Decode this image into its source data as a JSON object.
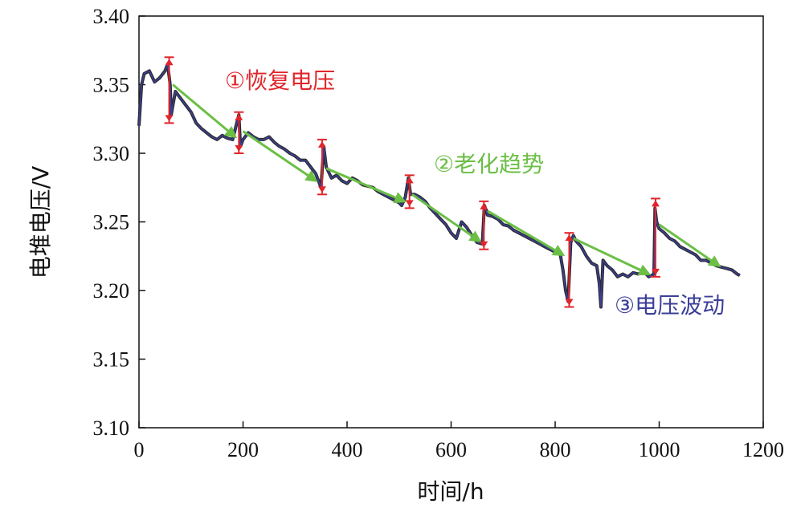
{
  "chart_data": {
    "type": "line",
    "title": "",
    "xlabel": "时间/h",
    "ylabel": "电堆电压/V",
    "xlim": [
      0,
      1200
    ],
    "ylim": [
      3.1,
      3.4
    ],
    "x_ticks": [
      "0",
      "200",
      "400",
      "600",
      "800",
      "1000",
      "1200"
    ],
    "y_ticks": [
      "3.10",
      "3.15",
      "3.20",
      "3.25",
      "3.30",
      "3.35",
      "3.40"
    ],
    "grid": false,
    "legend": "none",
    "colors": {
      "raw": "#2b2b2b",
      "fluctuation": "#3c3f9a",
      "recovery": "#e0262b",
      "trend": "#6bbf45"
    },
    "series": [
      {
        "values_x": [
          0,
          5,
          10,
          20,
          30,
          40,
          50,
          55,
          60,
          62,
          70,
          80,
          90,
          100,
          110,
          120,
          130,
          140,
          150,
          160,
          170,
          180,
          188,
          192,
          195,
          200,
          210,
          220,
          230,
          240,
          250,
          260,
          270,
          280,
          290,
          300,
          310,
          320,
          330,
          340,
          345,
          350,
          355,
          360,
          370,
          380,
          390,
          400,
          410,
          420,
          430,
          440,
          450,
          460,
          470,
          480,
          490,
          500,
          505,
          512,
          518,
          522,
          530,
          540,
          550,
          560,
          570,
          580,
          590,
          600,
          610,
          620,
          630,
          640,
          650,
          660,
          664,
          668,
          670,
          680,
          690,
          700,
          710,
          720,
          730,
          740,
          750,
          760,
          770,
          780,
          790,
          800,
          810,
          815,
          820,
          825,
          830,
          835,
          840,
          850,
          860,
          870,
          880,
          885,
          888,
          892,
          900,
          910,
          920,
          930,
          940,
          950,
          960,
          970,
          980,
          990,
          992,
          995,
          1000,
          1010,
          1020,
          1030,
          1040,
          1050,
          1060,
          1070,
          1080,
          1090,
          1100,
          1110,
          1120,
          1130,
          1140,
          1150,
          1155
        ],
        "values_y": [
          3.32,
          3.35,
          3.358,
          3.36,
          3.352,
          3.355,
          3.36,
          3.365,
          3.35,
          3.328,
          3.345,
          3.34,
          3.335,
          3.33,
          3.322,
          3.318,
          3.315,
          3.312,
          3.31,
          3.313,
          3.311,
          3.31,
          3.322,
          3.328,
          3.305,
          3.31,
          3.315,
          3.312,
          3.31,
          3.31,
          3.312,
          3.308,
          3.305,
          3.303,
          3.3,
          3.298,
          3.295,
          3.295,
          3.29,
          3.285,
          3.28,
          3.275,
          3.305,
          3.29,
          3.282,
          3.284,
          3.28,
          3.278,
          3.282,
          3.28,
          3.277,
          3.276,
          3.275,
          3.272,
          3.27,
          3.268,
          3.266,
          3.264,
          3.262,
          3.268,
          3.282,
          3.27,
          3.27,
          3.268,
          3.265,
          3.26,
          3.256,
          3.252,
          3.248,
          3.242,
          3.238,
          3.25,
          3.246,
          3.24,
          3.235,
          3.234,
          3.262,
          3.258,
          3.255,
          3.254,
          3.252,
          3.248,
          3.247,
          3.244,
          3.242,
          3.24,
          3.238,
          3.236,
          3.234,
          3.232,
          3.23,
          3.228,
          3.226,
          3.215,
          3.2,
          3.192,
          3.235,
          3.24,
          3.236,
          3.232,
          3.225,
          3.22,
          3.218,
          3.205,
          3.188,
          3.222,
          3.218,
          3.215,
          3.21,
          3.212,
          3.21,
          3.213,
          3.212,
          3.214,
          3.21,
          3.212,
          3.26,
          3.25,
          3.245,
          3.242,
          3.238,
          3.236,
          3.232,
          3.23,
          3.228,
          3.226,
          3.222,
          3.222,
          3.22,
          3.218,
          3.217,
          3.216,
          3.215,
          3.212,
          3.211
        ]
      }
    ],
    "recovery_markers": [
      {
        "x": 58,
        "y_low": 3.322,
        "y_high": 3.37
      },
      {
        "x": 192,
        "y_low": 3.3,
        "y_high": 3.33
      },
      {
        "x": 352,
        "y_low": 3.27,
        "y_high": 3.31
      },
      {
        "x": 520,
        "y_low": 3.26,
        "y_high": 3.284
      },
      {
        "x": 663,
        "y_low": 3.23,
        "y_high": 3.265
      },
      {
        "x": 827,
        "y_low": 3.188,
        "y_high": 3.242
      },
      {
        "x": 993,
        "y_low": 3.21,
        "y_high": 3.267
      }
    ],
    "trend_segments": [
      {
        "x1": 65,
        "y1": 3.35,
        "x2": 185,
        "y2": 3.312
      },
      {
        "x1": 200,
        "y1": 3.316,
        "x2": 340,
        "y2": 3.28
      },
      {
        "x1": 360,
        "y1": 3.289,
        "x2": 510,
        "y2": 3.265
      },
      {
        "x1": 525,
        "y1": 3.27,
        "x2": 655,
        "y2": 3.236
      },
      {
        "x1": 670,
        "y1": 3.258,
        "x2": 815,
        "y2": 3.226
      },
      {
        "x1": 835,
        "y1": 3.238,
        "x2": 980,
        "y2": 3.212
      },
      {
        "x1": 1000,
        "y1": 3.248,
        "x2": 1115,
        "y2": 3.218
      }
    ],
    "annotations": {
      "recovery": "①恢复电压",
      "trend": "②老化趋势",
      "fluctuation": "③电压波动"
    }
  }
}
